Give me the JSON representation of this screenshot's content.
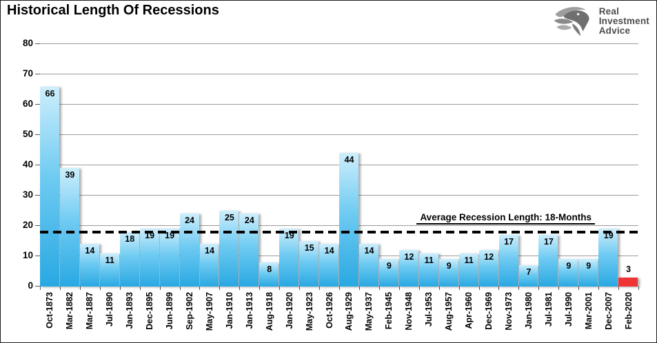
{
  "title": "Historical Length Of Recessions",
  "logo": {
    "line1": "Real",
    "line2": "Investment",
    "line3": "Advice"
  },
  "chart_data": {
    "type": "bar",
    "title": "Historical Length Of Recessions",
    "xlabel": "",
    "ylabel": "",
    "ylim": [
      0,
      80
    ],
    "ytick_step": 10,
    "yticks": [
      0,
      10,
      20,
      30,
      40,
      50,
      60,
      70,
      80
    ],
    "grid": "horizontal-only",
    "legend": "none",
    "bar_value_labels": "shown",
    "categories": [
      "Oct-1873",
      "Mar-1882",
      "Mar-1887",
      "Jul-1890",
      "Jan-1893",
      "Dec-1895",
      "Jun-1899",
      "Sep-1902",
      "May-1907",
      "Jan-1910",
      "Jan-1913",
      "Aug-1918",
      "Jan-1920",
      "May-1923",
      "Oct-1926",
      "Aug-1929",
      "May-1937",
      "Feb-1945",
      "Nov-1948",
      "Jul-1953",
      "Aug-1957",
      "Apr-1960",
      "Dec-1969",
      "Nov-1973",
      "Jan-1980",
      "Jul-1981",
      "Jul-1990",
      "Mar-2001",
      "Dec-2007",
      "Feb-2020"
    ],
    "values": [
      66,
      39,
      14,
      11,
      18,
      19,
      19,
      24,
      14,
      25,
      24,
      8,
      19,
      15,
      14,
      44,
      14,
      9,
      12,
      11,
      9,
      11,
      12,
      17,
      7,
      17,
      9,
      9,
      19,
      3
    ],
    "highlight_index": 29,
    "average_line": {
      "value": 18,
      "label": "Average Recession Length: 18-Months"
    },
    "colors": {
      "bar_gradient_top": "#cdeefc",
      "bar_gradient_mid": "#6fcbf2",
      "bar_gradient_bottom": "#29a8e2",
      "highlight_bar": "#ee3434",
      "gridline": "#9a9a9a",
      "average_line": "#000000",
      "logo_text": "#4c4c4c"
    }
  }
}
